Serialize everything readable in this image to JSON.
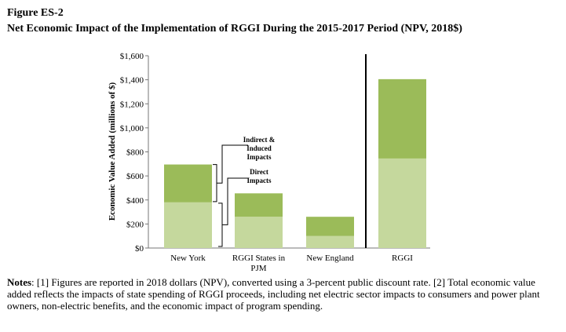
{
  "figure": {
    "label": "Figure ES-2",
    "title": "Net Economic Impact of the Implementation of RGGI During the 2015-2017 Period (NPV, 2018$)"
  },
  "notes": {
    "heading": "Notes",
    "text": ": [1] Figures are reported in 2018 dollars (NPV), converted using a 3-percent public discount rate. [2] Total economic value added reflects the impacts of state spending of RGGI proceeds, including net electric sector impacts to consumers and power plant owners, non-electric benefits, and the economic impact of program spending."
  },
  "chart_data": {
    "type": "bar",
    "stacked": true,
    "categories": [
      "New York",
      "RGGI States in PJM",
      "New England",
      "RGGI"
    ],
    "category_lines": [
      [
        "New York"
      ],
      [
        "RGGI States in",
        "PJM"
      ],
      [
        "New England"
      ],
      [
        "RGGI"
      ]
    ],
    "series": [
      {
        "name": "Direct Impacts",
        "name_lines": [
          "Direct",
          "Impacts"
        ],
        "color": "#c5d89d",
        "values": [
          380,
          260,
          100,
          745
        ]
      },
      {
        "name": "Indirect & Induced Impacts",
        "name_lines": [
          "Indirect &",
          "Induced",
          "Impacts"
        ],
        "color": "#9bbb59",
        "values": [
          315,
          195,
          160,
          660
        ]
      }
    ],
    "ylabel": "Economic Value Added (millions of $)",
    "ylim": [
      0,
      1600
    ],
    "yticks": [
      0,
      200,
      400,
      600,
      800,
      1000,
      1200,
      1400,
      1600
    ],
    "ytick_labels": [
      "$0",
      "$200",
      "$400",
      "$600",
      "$800",
      "$1,000",
      "$1,200",
      "$1,400",
      "$1,600"
    ],
    "grid": false,
    "legend": "bracket annotations beside the New York bar",
    "separator_before_category": "RGGI"
  }
}
